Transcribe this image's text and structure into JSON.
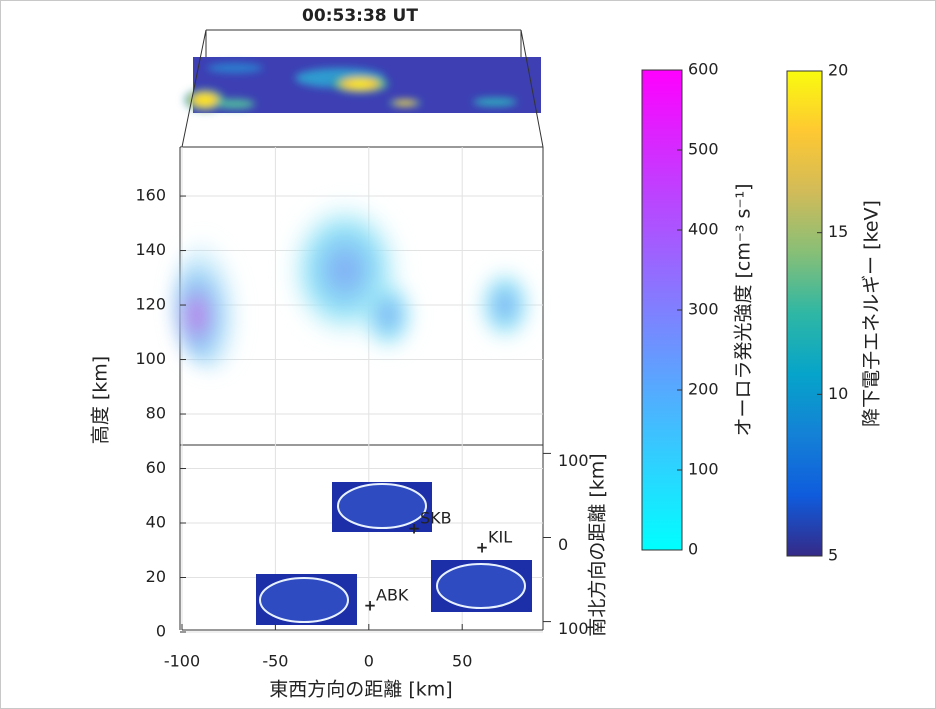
{
  "chart_data": {
    "type": "volume3d",
    "title": "00:53:38 UT",
    "xlabel": "東西方向の距離 [km]",
    "ylabel": "南北方向の距離 [km]",
    "zlabel": "高度 [km]",
    "xlim": [
      -100,
      97
    ],
    "xticks": [
      -100,
      -50,
      0,
      50
    ],
    "ylim": [
      -110,
      110
    ],
    "yticks": [
      {
        "value": -100,
        "label": "100"
      },
      0,
      100
    ],
    "zlim": [
      0,
      178
    ],
    "zticks": [
      0,
      20,
      40,
      60,
      80,
      100,
      120,
      140,
      160
    ],
    "grid": true,
    "stations": [
      "SKB",
      "KIL",
      "ABK"
    ],
    "colorbars": [
      {
        "label": "オーロラ発光強度 [cm⁻³ s⁻¹]",
        "lim": [
          0,
          600
        ],
        "ticks": [
          0,
          100,
          200,
          300,
          400,
          500,
          600
        ],
        "colors": [
          "#00ffff",
          "#ff00ff"
        ]
      },
      {
        "label": "降下電子エネルギー [keV]",
        "lim": [
          5,
          20
        ],
        "ticks": [
          5,
          10,
          15,
          20
        ],
        "colors": [
          "#352a87",
          "#0f5cdd",
          "#1481d6",
          "#06a4ca",
          "#2eb7a4",
          "#87bf77",
          "#d1bb59",
          "#fec832",
          "#f9fb0e"
        ]
      }
    ]
  }
}
